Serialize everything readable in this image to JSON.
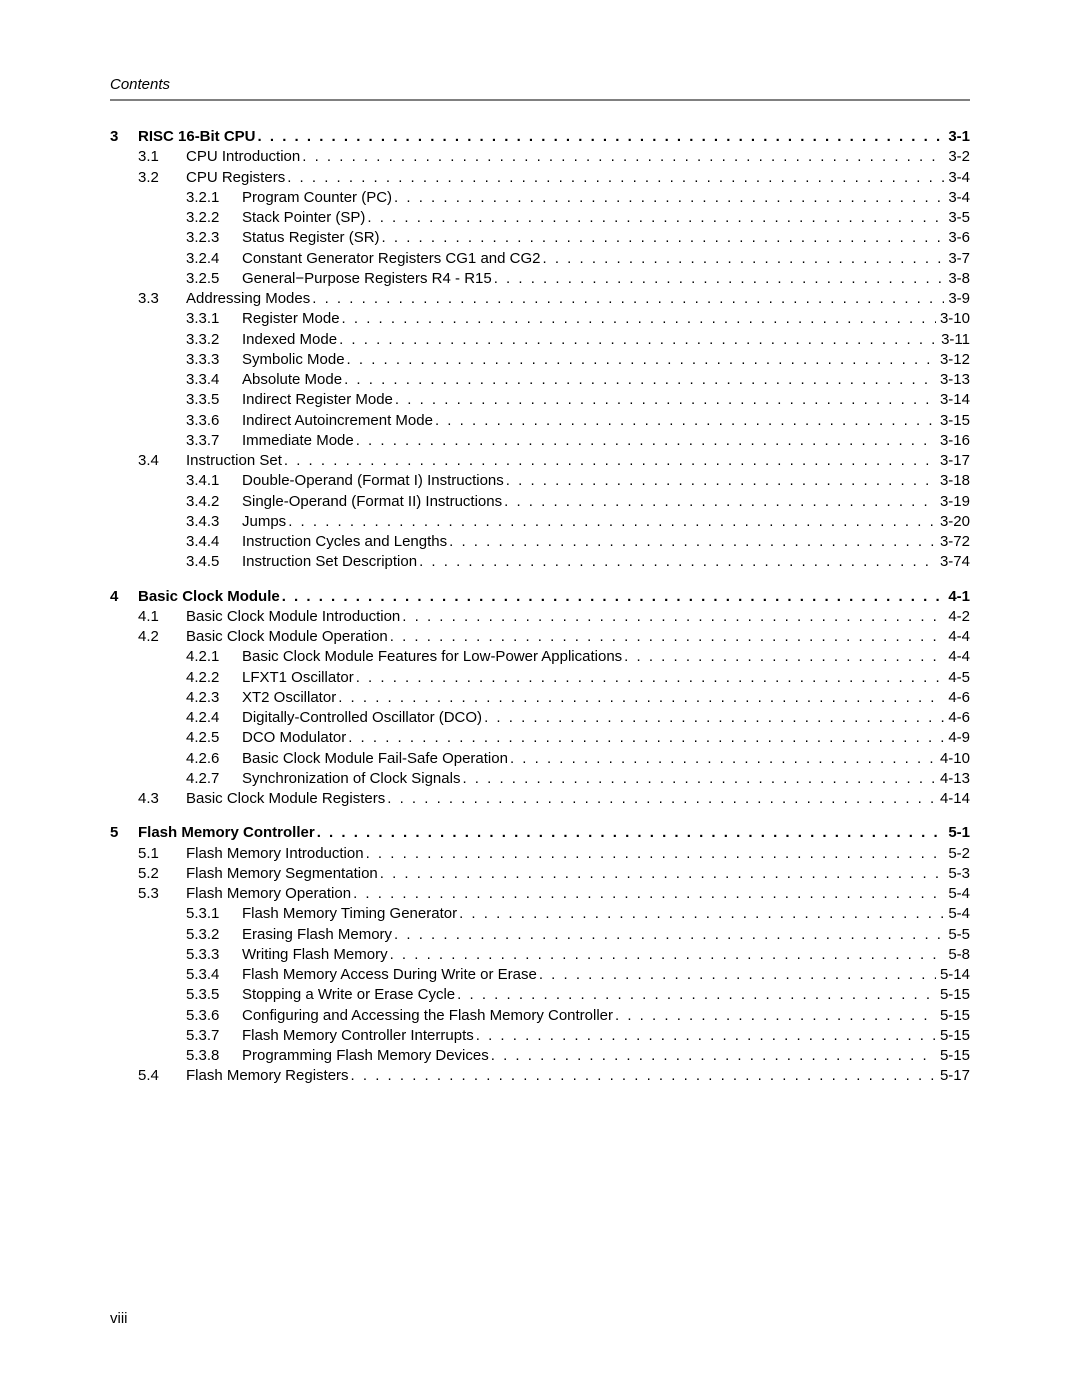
{
  "header": "Contents",
  "page_number": "viii",
  "chapters": [
    {
      "num": "3",
      "title": "RISC 16-Bit CPU",
      "page": "3-1",
      "sections": [
        {
          "num": "3.1",
          "title": "CPU Introduction",
          "page": "3-2",
          "subs": []
        },
        {
          "num": "3.2",
          "title": "CPU Registers",
          "page": "3-4",
          "subs": [
            {
              "num": "3.2.1",
              "title": "Program Counter (PC)",
              "page": "3-4"
            },
            {
              "num": "3.2.2",
              "title": "Stack Pointer (SP)",
              "page": "3-5"
            },
            {
              "num": "3.2.3",
              "title": "Status Register (SR)",
              "page": "3-6"
            },
            {
              "num": "3.2.4",
              "title": "Constant Generator Registers CG1 and CG2",
              "page": "3-7"
            },
            {
              "num": "3.2.5",
              "title": "General−Purpose Registers R4 - R15",
              "page": "3-8"
            }
          ]
        },
        {
          "num": "3.3",
          "title": "Addressing Modes",
          "page": "3-9",
          "subs": [
            {
              "num": "3.3.1",
              "title": "Register Mode",
              "page": "3-10"
            },
            {
              "num": "3.3.2",
              "title": "Indexed Mode",
              "page": "3-11"
            },
            {
              "num": "3.3.3",
              "title": "Symbolic Mode",
              "page": "3-12"
            },
            {
              "num": "3.3.4",
              "title": "Absolute Mode",
              "page": "3-13"
            },
            {
              "num": "3.3.5",
              "title": "Indirect Register Mode",
              "page": "3-14"
            },
            {
              "num": "3.3.6",
              "title": "Indirect Autoincrement Mode",
              "page": "3-15"
            },
            {
              "num": "3.3.7",
              "title": "Immediate Mode",
              "page": "3-16"
            }
          ]
        },
        {
          "num": "3.4",
          "title": "Instruction Set",
          "page": "3-17",
          "subs": [
            {
              "num": "3.4.1",
              "title": "Double-Operand (Format I) Instructions",
              "page": "3-18"
            },
            {
              "num": "3.4.2",
              "title": "Single-Operand (Format II) Instructions",
              "page": "3-19"
            },
            {
              "num": "3.4.3",
              "title": "Jumps",
              "page": "3-20"
            },
            {
              "num": "3.4.4",
              "title": "Instruction Cycles and Lengths",
              "page": "3-72"
            },
            {
              "num": "3.4.5",
              "title": "Instruction Set Description",
              "page": "3-74"
            }
          ]
        }
      ]
    },
    {
      "num": "4",
      "title": "Basic Clock Module",
      "page": "4-1",
      "sections": [
        {
          "num": "4.1",
          "title": "Basic Clock Module Introduction",
          "page": "4-2",
          "subs": []
        },
        {
          "num": "4.2",
          "title": "Basic Clock Module Operation",
          "page": "4-4",
          "subs": [
            {
              "num": "4.2.1",
              "title": "Basic Clock Module Features for Low-Power Applications",
              "page": "4-4"
            },
            {
              "num": "4.2.2",
              "title": "LFXT1 Oscillator",
              "page": "4-5"
            },
            {
              "num": "4.2.3",
              "title": "XT2 Oscillator",
              "page": "4-6"
            },
            {
              "num": "4.2.4",
              "title": "Digitally-Controlled Oscillator (DCO)",
              "page": "4-6"
            },
            {
              "num": "4.2.5",
              "title": "DCO Modulator",
              "page": "4-9"
            },
            {
              "num": "4.2.6",
              "title": "Basic Clock Module Fail-Safe Operation",
              "page": "4-10"
            },
            {
              "num": "4.2.7",
              "title": "Synchronization of Clock Signals",
              "page": "4-13"
            }
          ]
        },
        {
          "num": "4.3",
          "title": "Basic Clock Module Registers",
          "page": "4-14",
          "subs": []
        }
      ]
    },
    {
      "num": "5",
      "title": "Flash Memory Controller",
      "page": "5-1",
      "sections": [
        {
          "num": "5.1",
          "title": "Flash Memory Introduction",
          "page": "5-2",
          "subs": []
        },
        {
          "num": "5.2",
          "title": "Flash Memory Segmentation",
          "page": "5-3",
          "subs": []
        },
        {
          "num": "5.3",
          "title": "Flash Memory Operation",
          "page": "5-4",
          "subs": [
            {
              "num": "5.3.1",
              "title": "Flash Memory Timing Generator",
              "page": "5-4"
            },
            {
              "num": "5.3.2",
              "title": "Erasing Flash Memory",
              "page": "5-5"
            },
            {
              "num": "5.3.3",
              "title": "Writing Flash Memory",
              "page": "5-8"
            },
            {
              "num": "5.3.4",
              "title": "Flash Memory Access During Write or Erase",
              "page": "5-14"
            },
            {
              "num": "5.3.5",
              "title": "Stopping a Write or Erase Cycle",
              "page": "5-15"
            },
            {
              "num": "5.3.6",
              "title": "Configuring and Accessing the Flash Memory Controller",
              "page": "5-15"
            },
            {
              "num": "5.3.7",
              "title": "Flash Memory Controller Interrupts",
              "page": "5-15"
            },
            {
              "num": "5.3.8",
              "title": "Programming Flash Memory Devices",
              "page": "5-15"
            }
          ]
        },
        {
          "num": "5.4",
          "title": "Flash Memory Registers",
          "page": "5-17",
          "subs": []
        }
      ]
    }
  ]
}
